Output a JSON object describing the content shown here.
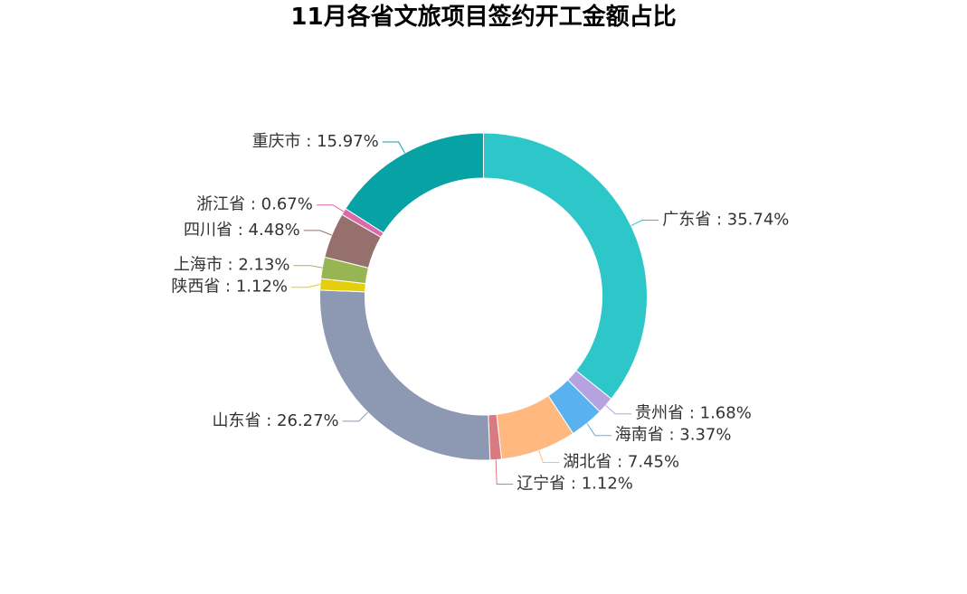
{
  "chart_data": {
    "type": "pie",
    "title": "11月各省文旅项目签约开工金额占比",
    "donut": true,
    "start_angle_deg": 90,
    "direction": "clockwise",
    "slices": [
      {
        "label": "广东省",
        "value": 35.74,
        "display": "广东省 : 35.74%",
        "color": "#2ec7c9"
      },
      {
        "label": "贵州省",
        "value": 1.68,
        "display": "贵州省 : 1.68%",
        "color": "#b6a2de"
      },
      {
        "label": "海南省",
        "value": 3.37,
        "display": "海南省 : 3.37%",
        "color": "#5ab1ef"
      },
      {
        "label": "湖北省",
        "value": 7.45,
        "display": "湖北省 : 7.45%",
        "color": "#ffb980"
      },
      {
        "label": "辽宁省",
        "value": 1.12,
        "display": "辽宁省 : 1.12%",
        "color": "#d87a80"
      },
      {
        "label": "山东省",
        "value": 26.27,
        "display": "山东省 : 26.27%",
        "color": "#8d98b3"
      },
      {
        "label": "陕西省",
        "value": 1.12,
        "display": "陕西省 : 1.12%",
        "color": "#e5cf0d"
      },
      {
        "label": "上海市",
        "value": 2.13,
        "display": "上海市 : 2.13%",
        "color": "#97b552"
      },
      {
        "label": "四川省",
        "value": 4.48,
        "display": "四川省 : 4.48%",
        "color": "#95706d"
      },
      {
        "label": "浙江省",
        "value": 0.67,
        "display": "浙江省 : 0.67%",
        "color": "#dc69aa"
      },
      {
        "label": "重庆市",
        "value": 15.97,
        "display": "重庆市 : 15.97%",
        "color": "#07a2a4"
      }
    ]
  }
}
